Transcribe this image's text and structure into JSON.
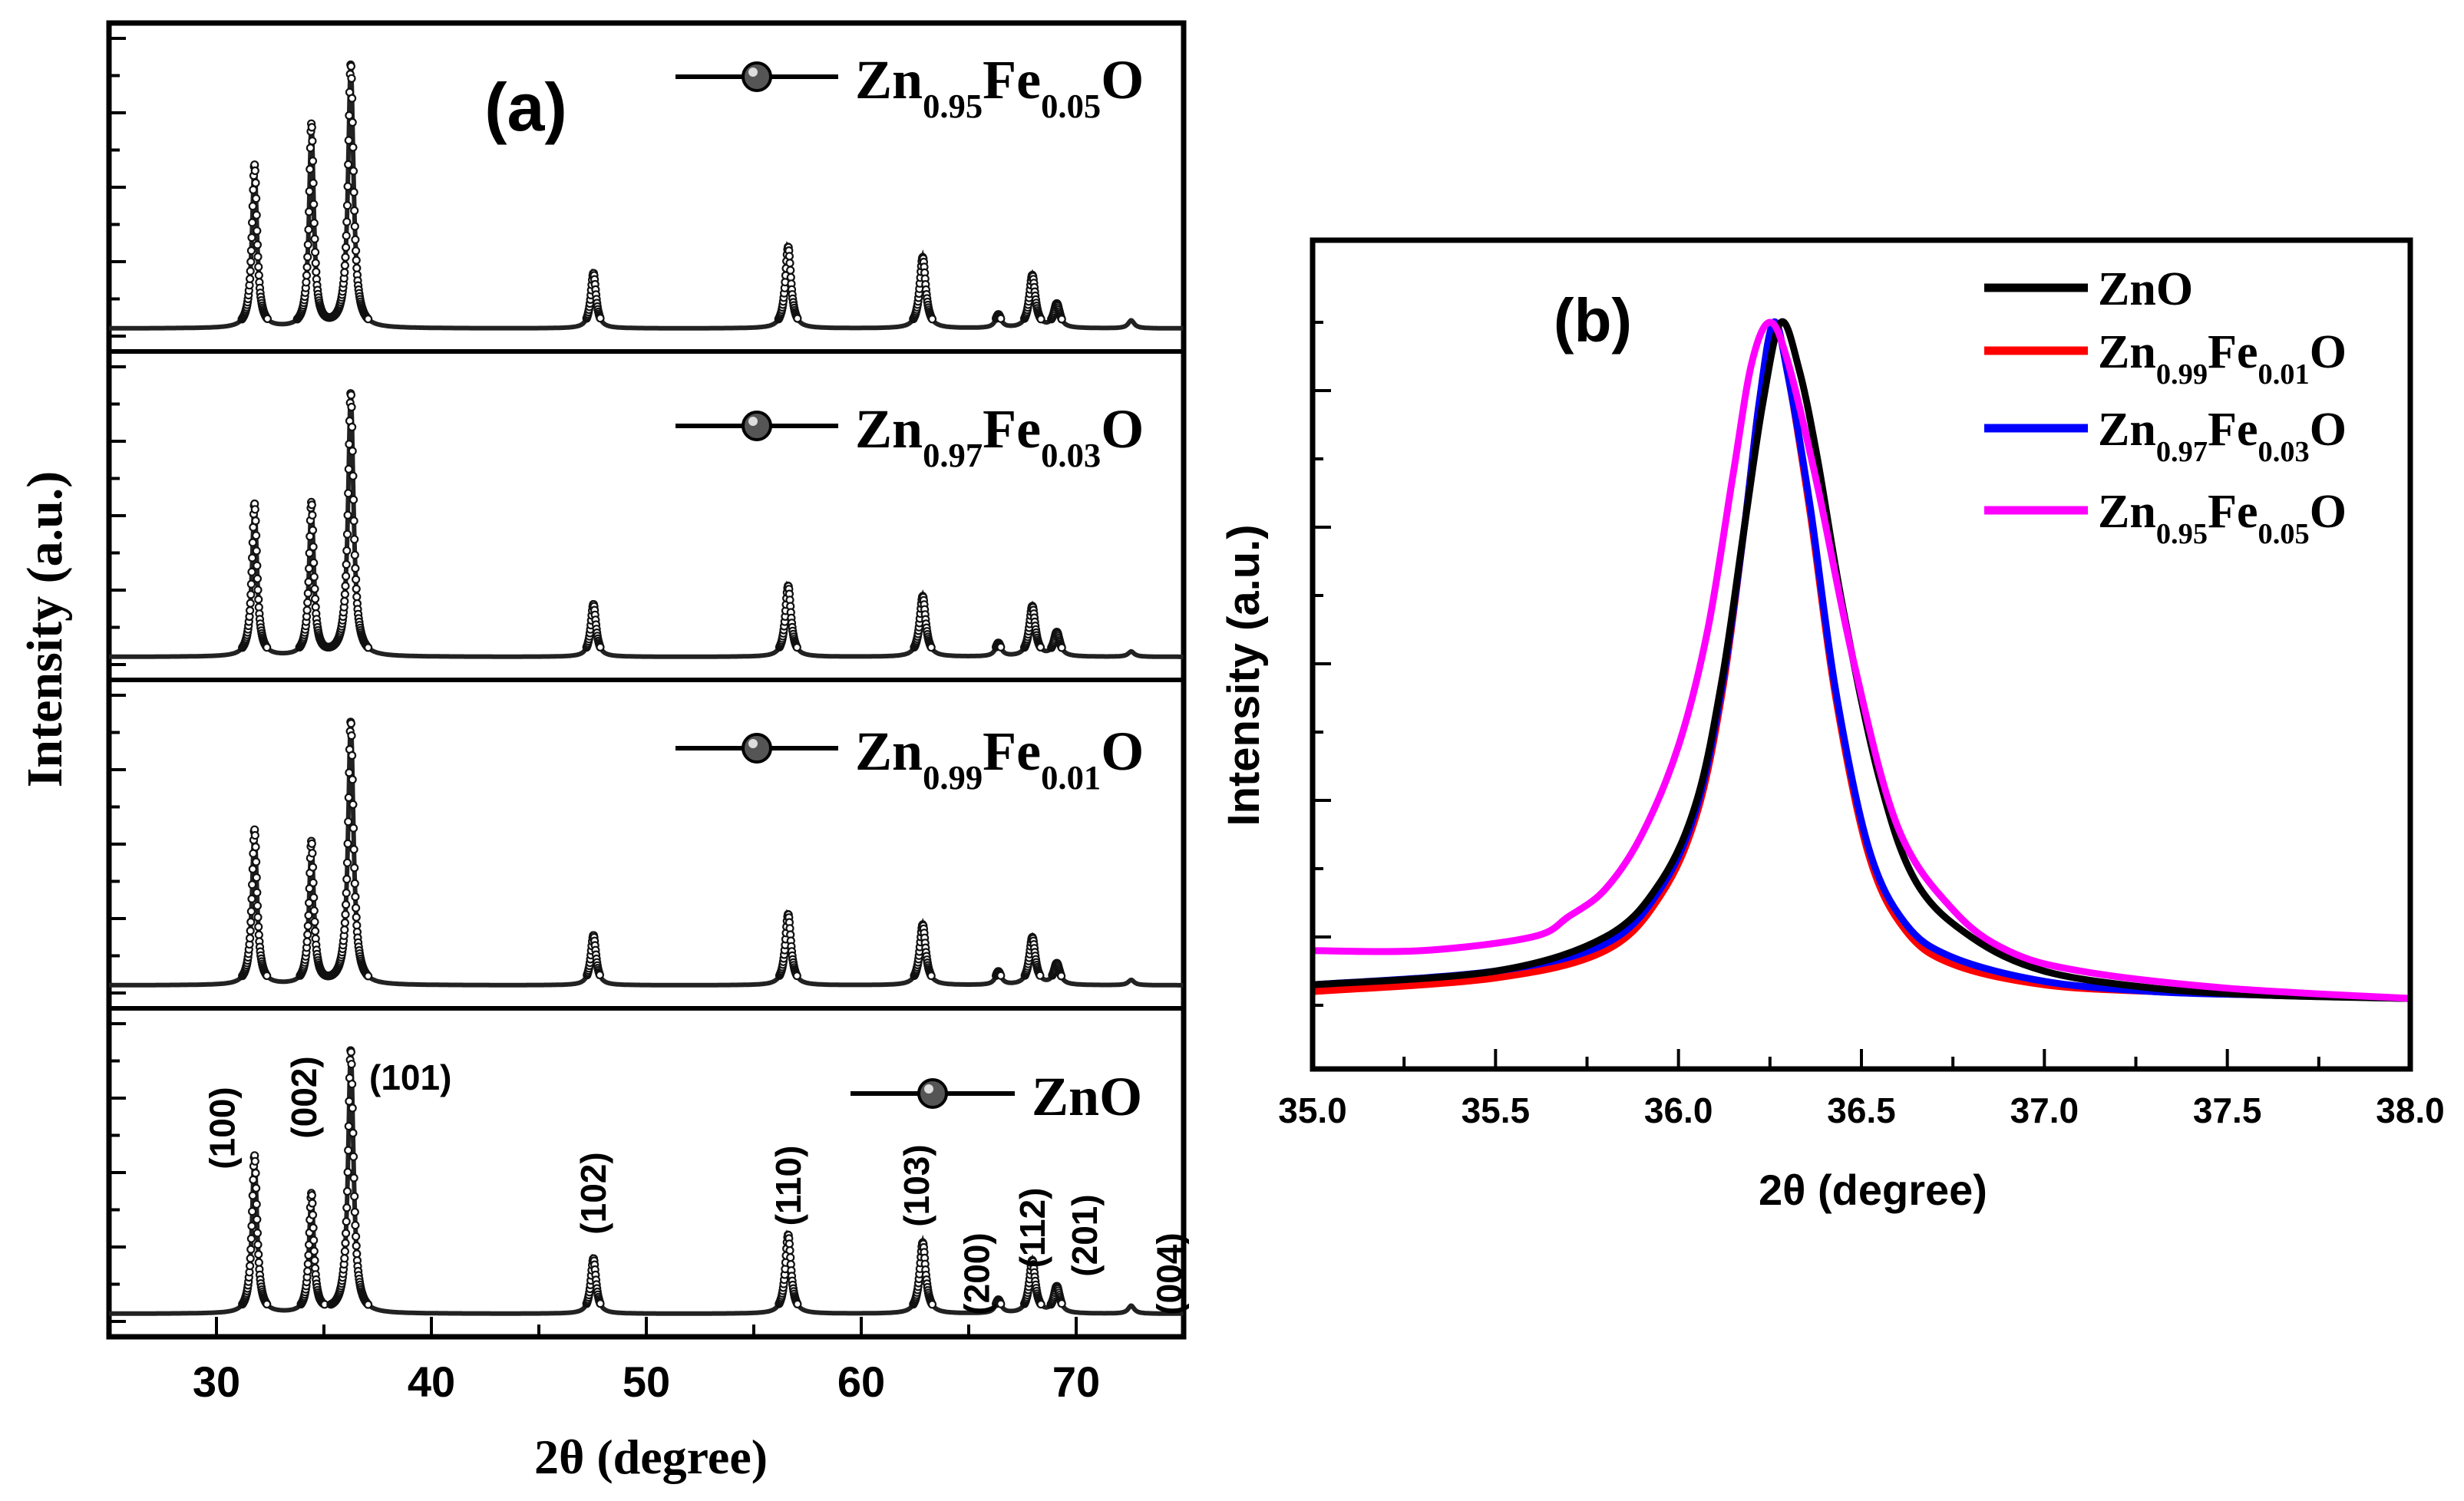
{
  "chart_data": [
    {
      "panel": "(a)",
      "type": "line",
      "title": "",
      "xlabel": "2θ (degree)",
      "ylabel": "Intensity (a.u.)",
      "xlim": [
        25,
        75
      ],
      "xticks": [
        30,
        40,
        50,
        60,
        70
      ],
      "ylim": [
        0,
        1
      ],
      "marker": "sphere",
      "stacked": true,
      "peaks": [
        {
          "label": "(100)",
          "x": 31.77
        },
        {
          "label": "(002)",
          "x": 34.42
        },
        {
          "label": "(101)",
          "x": 36.25
        },
        {
          "label": "(102)",
          "x": 47.54
        },
        {
          "label": "(110)",
          "x": 56.6
        },
        {
          "label": "(103)",
          "x": 62.86
        },
        {
          "label": "(200)",
          "x": 66.38
        },
        {
          "label": "(112)",
          "x": 67.96
        },
        {
          "label": "(201)",
          "x": 69.1
        },
        {
          "label": "(004)",
          "x": 72.56
        }
      ],
      "series": [
        {
          "name": "Zn0.95Fe0.05O",
          "label_main1": "Zn",
          "label_sub1": "0.95",
          "label_main2": "Fe",
          "label_sub2": "0.05",
          "label_main3": "O",
          "peak_heights": [
            0.62,
            0.77,
            1.0,
            0.21,
            0.31,
            0.27,
            0.05,
            0.2,
            0.09,
            0.03
          ]
        },
        {
          "name": "Zn0.97Fe0.03O",
          "label_main1": "Zn",
          "label_sub1": "0.97",
          "label_main2": "Fe",
          "label_sub2": "0.03",
          "label_main3": "O",
          "peak_heights": [
            0.58,
            0.58,
            1.0,
            0.2,
            0.27,
            0.23,
            0.05,
            0.19,
            0.09,
            0.02
          ]
        },
        {
          "name": "Zn0.99Fe0.01O",
          "label_main1": "Zn",
          "label_sub1": "0.99",
          "label_main2": "Fe",
          "label_sub2": "0.01",
          "label_main3": "O",
          "peak_heights": [
            0.59,
            0.54,
            1.0,
            0.19,
            0.27,
            0.23,
            0.05,
            0.18,
            0.08,
            0.02
          ]
        },
        {
          "name": "ZnO",
          "label_main1": "ZnO",
          "label_sub1": "",
          "label_main2": "",
          "label_sub2": "",
          "label_main3": "",
          "peak_heights": [
            0.6,
            0.45,
            1.0,
            0.21,
            0.3,
            0.27,
            0.05,
            0.2,
            0.1,
            0.03
          ]
        }
      ]
    },
    {
      "panel": "(b)",
      "type": "line",
      "title": "",
      "xlabel": "2θ (degree)",
      "ylabel": "Intensity (a.u.)",
      "xlim": [
        35.0,
        38.0
      ],
      "xticks": [
        "35.0",
        "35.5",
        "36.0",
        "36.5",
        "37.0",
        "37.5",
        "38.0"
      ],
      "ylim": [
        0,
        1.05
      ],
      "legend_position": "top-right",
      "series": [
        {
          "name": "ZnO",
          "label_main1": "ZnO",
          "label_sub1": "",
          "label_main2": "",
          "label_sub2": "",
          "label_main3": "",
          "color": "#000000",
          "x": [
            35.0,
            35.5,
            35.8,
            35.95,
            36.05,
            36.12,
            36.18,
            36.23,
            36.28,
            36.33,
            36.38,
            36.45,
            36.55,
            36.65,
            36.8,
            37.0,
            37.3,
            37.6,
            38.0
          ],
          "y": [
            0.03,
            0.05,
            0.1,
            0.18,
            0.3,
            0.48,
            0.7,
            0.88,
            1.0,
            0.93,
            0.8,
            0.58,
            0.33,
            0.18,
            0.1,
            0.05,
            0.025,
            0.015,
            0.01
          ]
        },
        {
          "name": "Zn0.99Fe0.01O",
          "label_main1": "Zn",
          "label_sub1": "0.99",
          "label_main2": "Fe",
          "label_sub2": "0.01",
          "label_main3": "O",
          "color": "#ff0000",
          "x": [
            35.0,
            35.5,
            35.8,
            35.95,
            36.05,
            36.12,
            36.18,
            36.22,
            36.26,
            36.3,
            36.36,
            36.43,
            36.52,
            36.62,
            36.75,
            37.0,
            37.3,
            37.6,
            38.0
          ],
          "y": [
            0.02,
            0.04,
            0.08,
            0.16,
            0.28,
            0.46,
            0.7,
            0.88,
            1.0,
            0.92,
            0.72,
            0.45,
            0.22,
            0.11,
            0.06,
            0.03,
            0.02,
            0.015,
            0.01
          ]
        },
        {
          "name": "Zn0.97Fe0.03O",
          "label_main1": "Zn",
          "label_sub1": "0.97",
          "label_main2": "Fe",
          "label_sub2": "0.03",
          "label_main3": "O",
          "color": "#0000ff",
          "x": [
            35.0,
            35.5,
            35.8,
            35.95,
            36.05,
            36.12,
            36.18,
            36.22,
            36.26,
            36.3,
            36.36,
            36.43,
            36.52,
            36.62,
            36.75,
            37.0,
            37.3,
            37.6,
            38.0
          ],
          "y": [
            0.03,
            0.05,
            0.09,
            0.17,
            0.29,
            0.47,
            0.7,
            0.88,
            1.0,
            0.92,
            0.73,
            0.46,
            0.23,
            0.12,
            0.07,
            0.035,
            0.02,
            0.015,
            0.01
          ]
        },
        {
          "name": "Zn0.95Fe0.05O",
          "label_main1": "Zn",
          "label_sub1": "0.95",
          "label_main2": "Fe",
          "label_sub2": "0.05",
          "label_main3": "O",
          "color": "#ff00ff",
          "x": [
            35.0,
            35.3,
            35.6,
            35.7,
            35.8,
            35.9,
            36.0,
            36.08,
            36.15,
            36.2,
            36.25,
            36.3,
            36.38,
            36.48,
            36.6,
            36.75,
            36.9,
            37.1,
            37.5,
            38.0
          ],
          "y": [
            0.08,
            0.08,
            0.1,
            0.13,
            0.17,
            0.25,
            0.38,
            0.55,
            0.78,
            0.94,
            1.0,
            0.94,
            0.76,
            0.5,
            0.26,
            0.14,
            0.08,
            0.05,
            0.025,
            0.01
          ]
        }
      ]
    }
  ]
}
